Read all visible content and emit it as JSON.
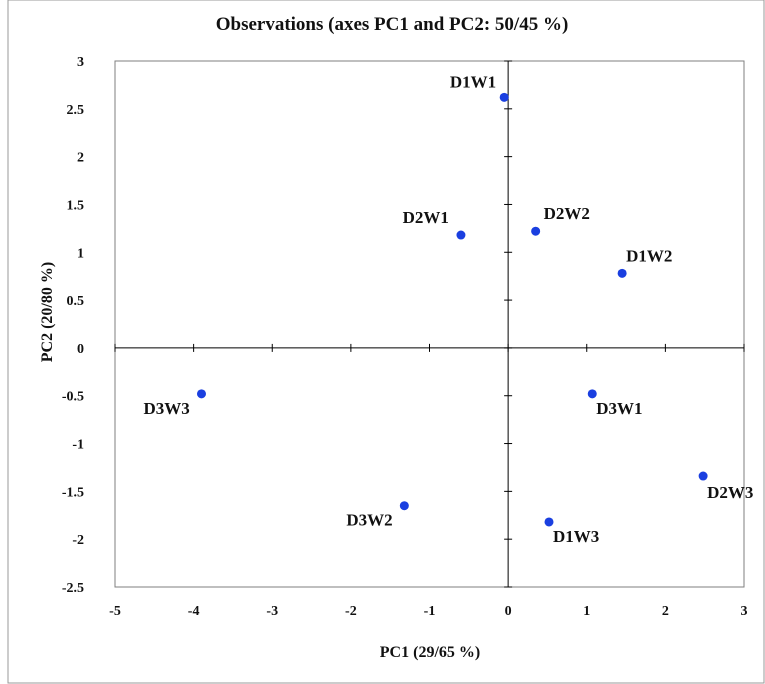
{
  "chart_data": {
    "type": "scatter",
    "title": "Observations (axes PC1 and PC2: 50/45 %)",
    "xlabel": "PC1 (29/65 %)",
    "ylabel": "PC2 (20/80 %)",
    "xlim": [
      -5,
      3
    ],
    "ylim": [
      -2.5,
      3
    ],
    "xticks": [
      "-5",
      "-4",
      "-3",
      "-2",
      "-1",
      "0",
      "1",
      "2",
      "3"
    ],
    "yticks": [
      "3",
      "2.5",
      "2",
      "1.5",
      "1",
      "0.5",
      "0",
      "-0.5",
      "-1",
      "-1.5",
      "-2",
      "-2.5"
    ],
    "grid": false,
    "marker_color": "#1a3fe0",
    "points": [
      {
        "label": "D1W1",
        "x": -0.05,
        "y": 2.62
      },
      {
        "label": "D2W1",
        "x": -0.6,
        "y": 1.18
      },
      {
        "label": "D2W2",
        "x": 0.35,
        "y": 1.22
      },
      {
        "label": "D1W2",
        "x": 1.45,
        "y": 0.78
      },
      {
        "label": "D3W3",
        "x": -3.9,
        "y": -0.48
      },
      {
        "label": "D3W1",
        "x": 1.07,
        "y": -0.48
      },
      {
        "label": "D2W3",
        "x": 2.48,
        "y": -1.34
      },
      {
        "label": "D3W2",
        "x": -1.32,
        "y": -1.65
      },
      {
        "label": "D1W3",
        "x": 0.52,
        "y": -1.82
      }
    ]
  }
}
